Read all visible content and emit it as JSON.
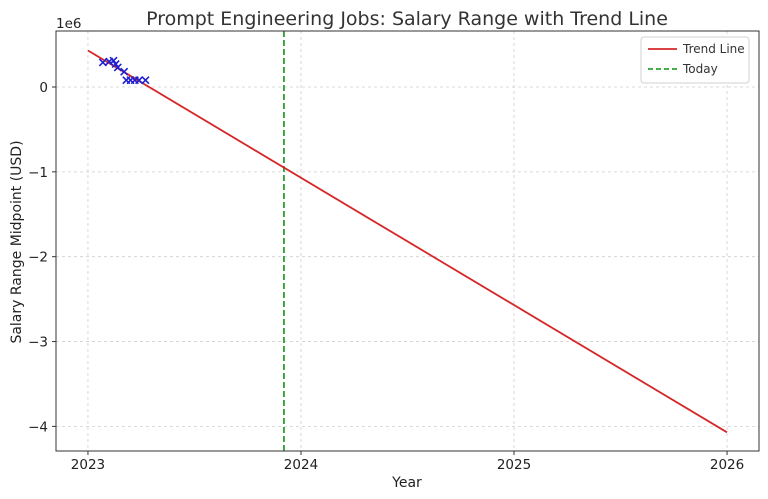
{
  "chart_data": {
    "type": "line",
    "title": "Prompt Engineering Jobs: Salary Range with Trend Line",
    "xlabel": "Year",
    "ylabel": "Salary Range Midpoint (USD)",
    "y_offset_label": "1e6",
    "xlim": [
      2022.85,
      2026.15
    ],
    "ylim": [
      -4.29,
      0.66
    ],
    "x_ticks": [
      2023,
      2024,
      2025,
      2026
    ],
    "x_tick_labels": [
      "2023",
      "2024",
      "2025",
      "2026"
    ],
    "y_ticks": [
      0,
      -1,
      -2,
      -3,
      -4
    ],
    "y_tick_labels": [
      "0",
      "−1",
      "−2",
      "−3",
      "−4"
    ],
    "grid": true,
    "legend": {
      "placement": "top-right",
      "entries": [
        {
          "label": "Trend Line",
          "color": "#d62728",
          "style": "solid"
        },
        {
          "label": "Today",
          "color": "#2ca02c",
          "style": "dashed"
        }
      ]
    },
    "series": [
      {
        "name": "Trend Line",
        "kind": "line",
        "color": "#d62728",
        "x": [
          2023.0,
          2026.0
        ],
        "y": [
          0.43,
          -4.07
        ]
      },
      {
        "kind": "scatter",
        "marker": "x",
        "color": "#1f1fd1",
        "x": [
          2023.07,
          2023.1,
          2023.12,
          2023.13,
          2023.14,
          2023.17,
          2023.18,
          2023.2,
          2023.22,
          2023.24,
          2023.27
        ],
        "y": [
          0.29,
          0.3,
          0.31,
          0.27,
          0.23,
          0.18,
          0.08,
          0.08,
          0.08,
          0.08,
          0.08
        ]
      }
    ],
    "reference_lines": [
      {
        "name": "Today",
        "orientation": "vertical",
        "x": 2023.92,
        "color": "#2ca02c",
        "style": "dashed"
      }
    ]
  }
}
